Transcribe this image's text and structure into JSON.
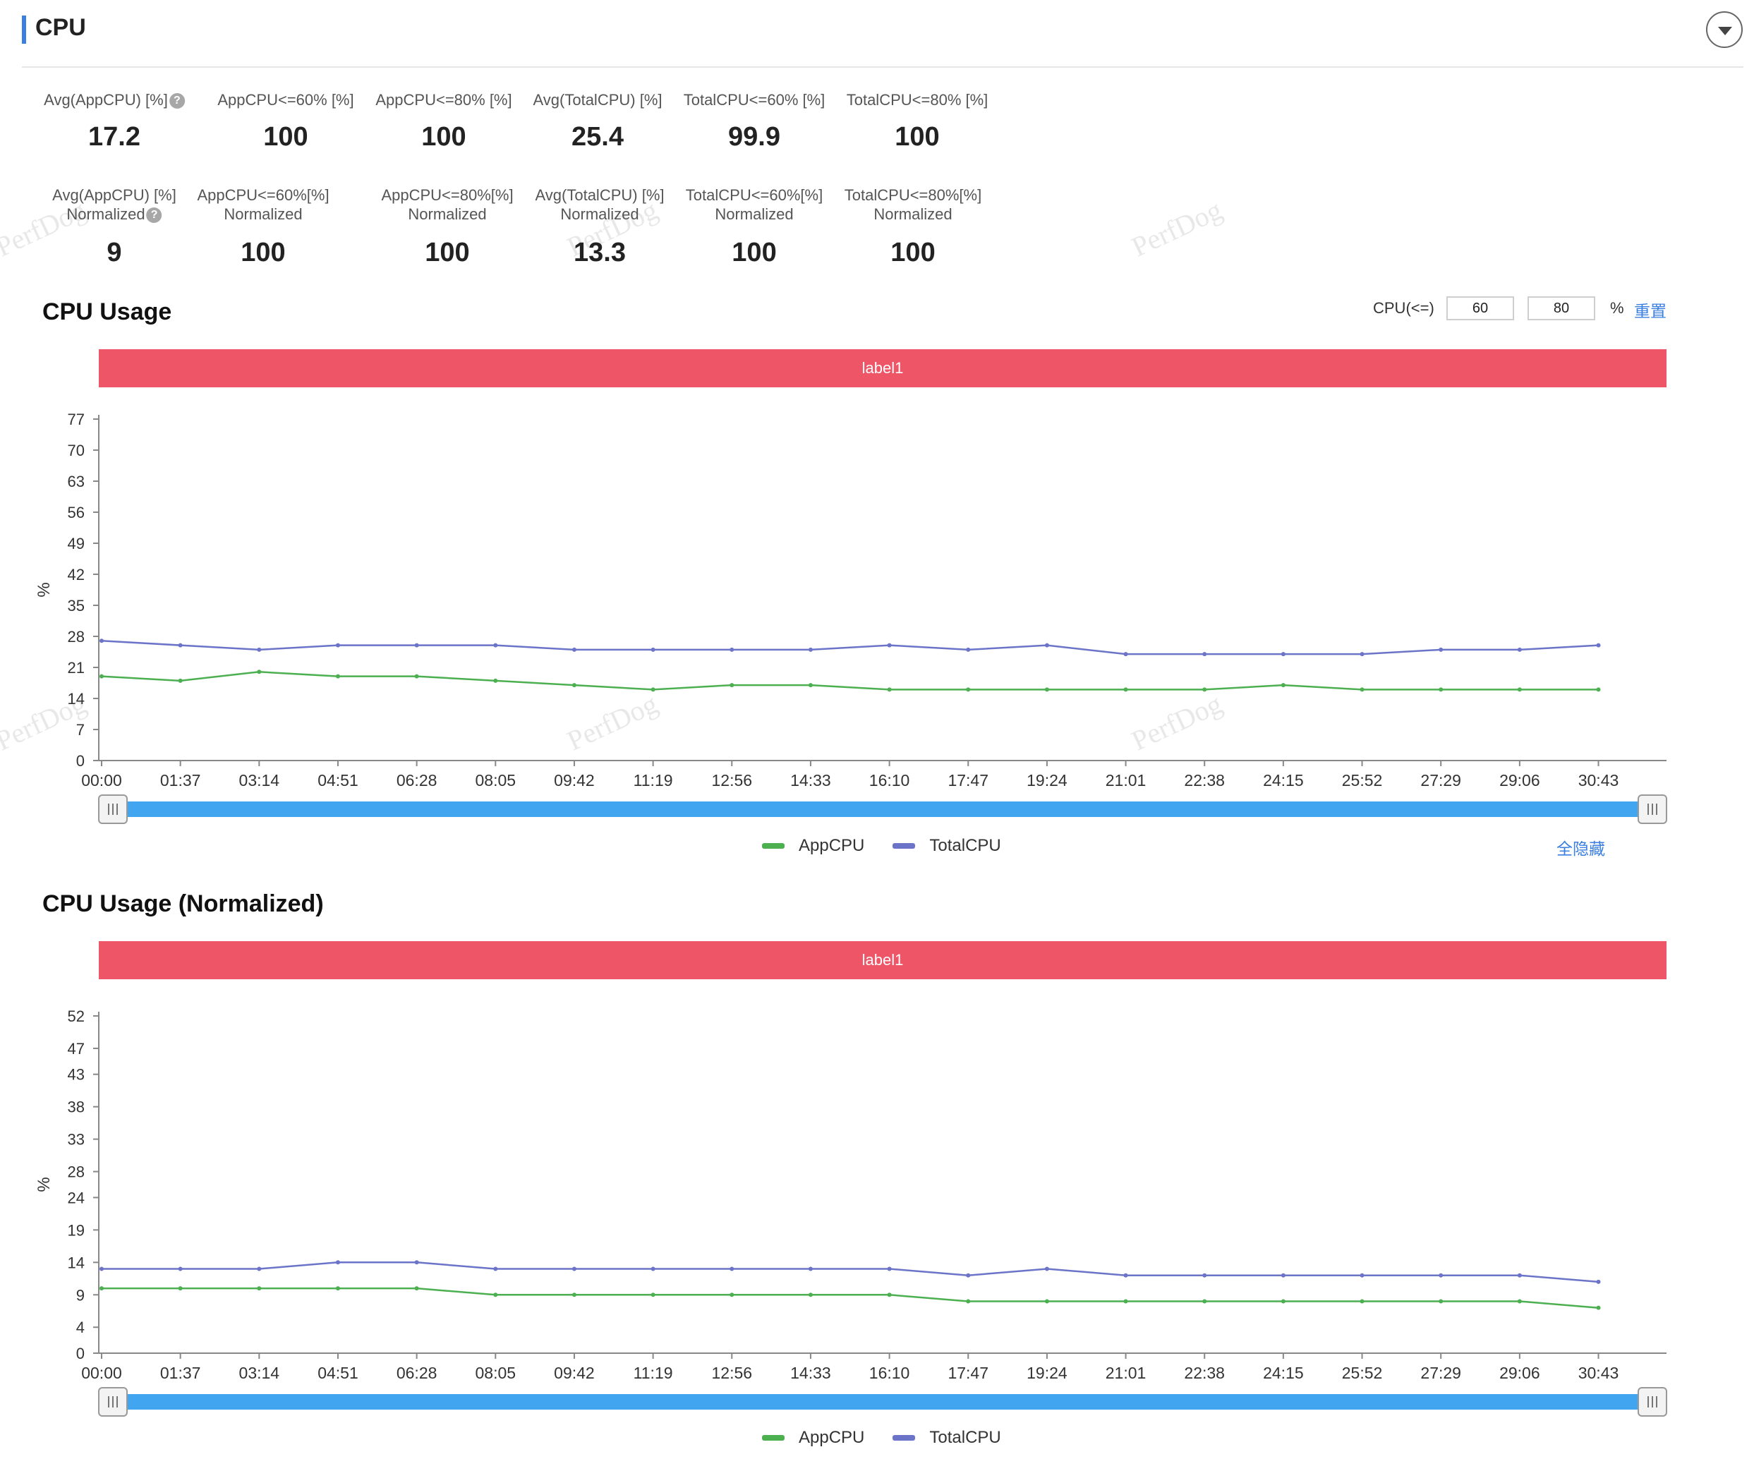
{
  "header": {
    "title": "CPU"
  },
  "stats": [
    {
      "label": "Avg(AppCPU) [%]",
      "help": true,
      "value": "17.2"
    },
    {
      "label": "AppCPU<=60% [%]",
      "value": "100"
    },
    {
      "label": "AppCPU<=80% [%]",
      "value": "100"
    },
    {
      "label": "Avg(TotalCPU) [%]",
      "value": "25.4"
    },
    {
      "label": "TotalCPU<=60% [%]",
      "value": "99.9"
    },
    {
      "label": "TotalCPU<=80% [%]",
      "value": "100"
    }
  ],
  "stats_normalized": [
    {
      "label": "Avg(AppCPU) [%]",
      "sub": "Normalized",
      "help": true,
      "value": "9"
    },
    {
      "label": "AppCPU<=60%[%]",
      "sub": "Normalized",
      "value": "100"
    },
    {
      "label": "AppCPU<=80%[%]",
      "sub": "Normalized",
      "value": "100"
    },
    {
      "label": "Avg(TotalCPU) [%]",
      "sub": "Normalized",
      "value": "13.3"
    },
    {
      "label": "TotalCPU<=60%[%]",
      "sub": "Normalized",
      "value": "100"
    },
    {
      "label": "TotalCPU<=80%[%]",
      "sub": "Normalized",
      "value": "100"
    }
  ],
  "watermark": "PerfDog",
  "threshold": {
    "label": "CPU(<=)",
    "low": "60",
    "high": "80",
    "unit": "%",
    "reset": "重置"
  },
  "hide_all": "全隐藏",
  "colors": {
    "app": "#4caf50",
    "total": "#6b74c8",
    "band": "#ee5566",
    "slider": "#42a5f0",
    "accent": "#3b7fe0"
  },
  "chart_data": [
    {
      "type": "line",
      "title": "CPU Usage",
      "band_label": "label1",
      "ylabel": "%",
      "ylim": [
        0,
        77
      ],
      "yticks": [
        "77",
        "70",
        "63",
        "56",
        "49",
        "42",
        "35",
        "28",
        "21",
        "14",
        "7",
        "0"
      ],
      "xticks": [
        "00:00",
        "01:37",
        "03:14",
        "04:51",
        "06:28",
        "08:05",
        "09:42",
        "11:19",
        "12:56",
        "14:33",
        "16:10",
        "17:47",
        "19:24",
        "21:01",
        "22:38",
        "24:15",
        "25:52",
        "27:29",
        "29:06",
        "30:43"
      ],
      "x": [
        "00:00",
        "01:37",
        "03:14",
        "04:51",
        "06:28",
        "08:05",
        "09:42",
        "11:19",
        "12:56",
        "14:33",
        "16:10",
        "17:47",
        "19:24",
        "21:01",
        "22:38",
        "24:15",
        "25:52",
        "27:29",
        "29:06",
        "30:43"
      ],
      "series": [
        {
          "name": "AppCPU",
          "values": [
            19,
            18,
            20,
            19,
            19,
            18,
            17,
            16,
            17,
            17,
            16,
            16,
            16,
            16,
            16,
            17,
            16,
            16,
            16,
            16
          ]
        },
        {
          "name": "TotalCPU",
          "values": [
            27,
            26,
            25,
            26,
            26,
            26,
            25,
            25,
            25,
            25,
            26,
            25,
            26,
            24,
            24,
            24,
            24,
            25,
            25,
            26
          ]
        }
      ],
      "legend": "bottom-center"
    },
    {
      "type": "line",
      "title": "CPU Usage (Normalized)",
      "band_label": "label1",
      "ylabel": "%",
      "ylim": [
        0,
        52
      ],
      "yticks": [
        "52",
        "47",
        "43",
        "38",
        "33",
        "28",
        "24",
        "19",
        "14",
        "9",
        "4",
        "0"
      ],
      "xticks": [
        "00:00",
        "01:37",
        "03:14",
        "04:51",
        "06:28",
        "08:05",
        "09:42",
        "11:19",
        "12:56",
        "14:33",
        "16:10",
        "17:47",
        "19:24",
        "21:01",
        "22:38",
        "24:15",
        "25:52",
        "27:29",
        "29:06",
        "30:43"
      ],
      "x": [
        "00:00",
        "01:37",
        "03:14",
        "04:51",
        "06:28",
        "08:05",
        "09:42",
        "11:19",
        "12:56",
        "14:33",
        "16:10",
        "17:47",
        "19:24",
        "21:01",
        "22:38",
        "24:15",
        "25:52",
        "27:29",
        "29:06",
        "30:43"
      ],
      "series": [
        {
          "name": "AppCPU",
          "values": [
            10,
            10,
            10,
            10,
            10,
            9,
            9,
            9,
            9,
            9,
            9,
            8,
            8,
            8,
            8,
            8,
            8,
            8,
            8,
            7
          ]
        },
        {
          "name": "TotalCPU",
          "values": [
            13,
            13,
            13,
            14,
            14,
            13,
            13,
            13,
            13,
            13,
            13,
            12,
            13,
            12,
            12,
            12,
            12,
            12,
            12,
            11
          ]
        }
      ],
      "legend": "bottom-center"
    }
  ]
}
